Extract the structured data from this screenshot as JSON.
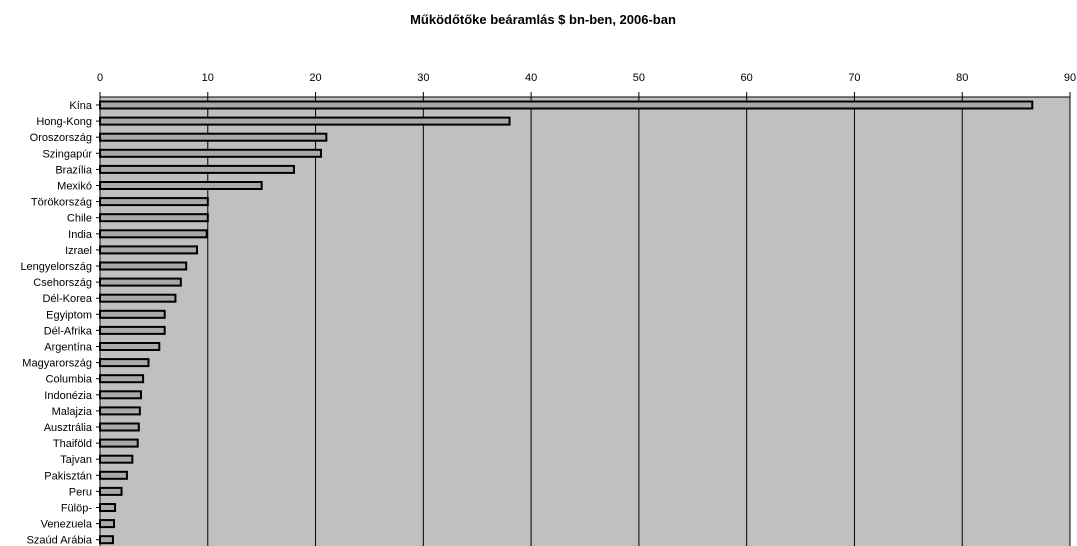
{
  "colors": {
    "plot_bg": "#c0c0c0",
    "bar_fill": "#a9a9a9",
    "bar_stroke": "#000000",
    "grid": "#000000"
  },
  "chart_data": {
    "type": "bar",
    "orientation": "horizontal",
    "title": "Működőtőke beáramlás $ bn-ben, 2006-ban",
    "xlabel": "",
    "ylabel": "",
    "xlim": [
      0,
      90
    ],
    "x_ticks": [
      0,
      10,
      20,
      30,
      40,
      50,
      60,
      70,
      80,
      90
    ],
    "axis_position": "top",
    "grid": true,
    "categories": [
      "Kína",
      "Hong-Kong",
      "Oroszország",
      "Szingapúr",
      "Brazília",
      "Mexikó",
      "Törökország",
      "Chile",
      "India",
      "Izrael",
      "Lengyelország",
      "Csehország",
      "Dél-Korea",
      "Egyiptom",
      "Dél-Afrika",
      "Argentína",
      "Magyarország",
      "Columbia",
      "Indonézia",
      "Malajzia",
      "Ausztrália",
      "Thaiföld",
      "Tajvan",
      "Pakisztán",
      "Peru",
      "Fülöp-",
      "Venezuela",
      "Szaúd Arábia"
    ],
    "values": [
      86.5,
      38.0,
      21.0,
      20.5,
      18.0,
      15.0,
      10.0,
      10.0,
      9.9,
      9.0,
      8.0,
      7.5,
      7.0,
      6.0,
      6.0,
      5.5,
      4.5,
      4.0,
      3.8,
      3.7,
      3.6,
      3.5,
      3.0,
      2.5,
      2.0,
      1.4,
      1.3,
      1.2
    ]
  }
}
